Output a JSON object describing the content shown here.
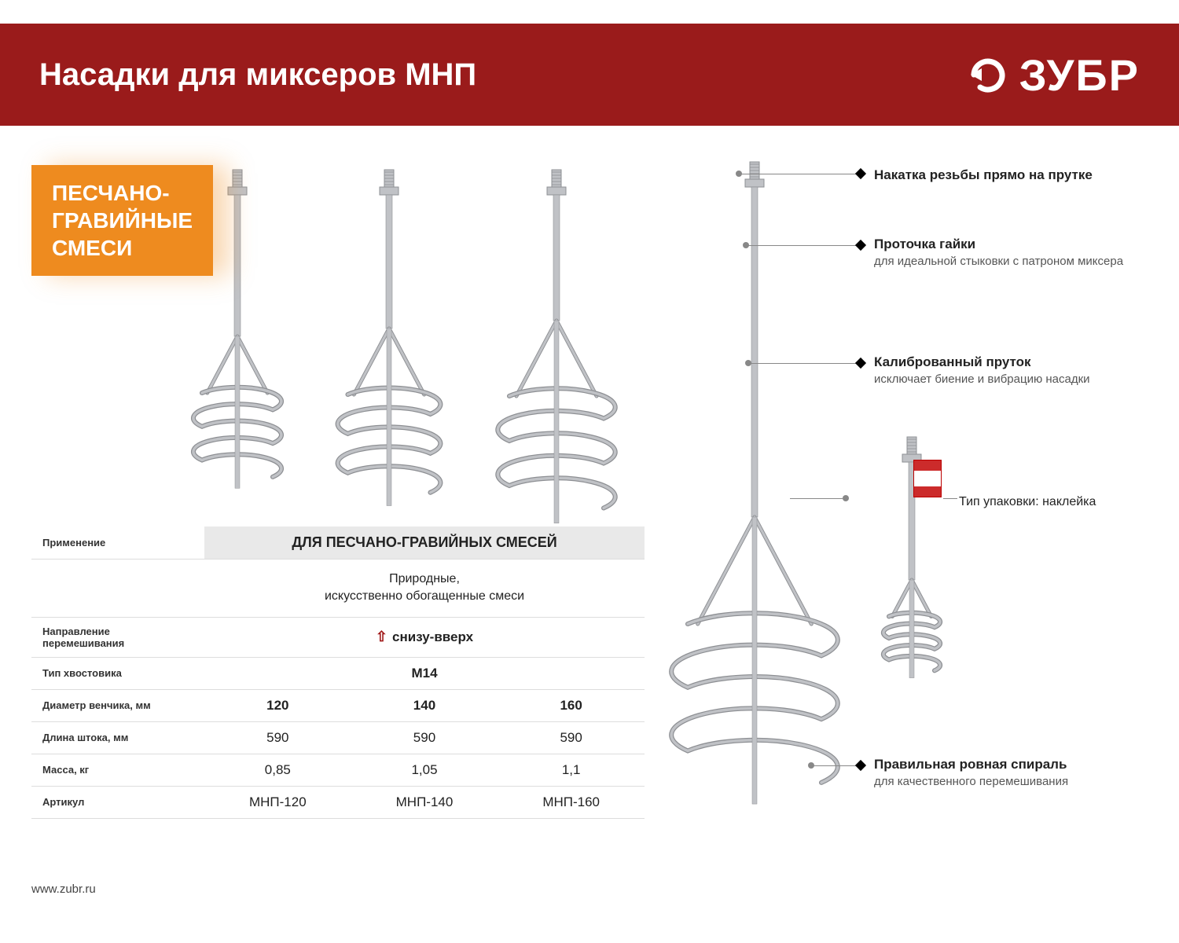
{
  "colors": {
    "header_bg": "#9a1b1b",
    "badge_bg": "#ee8b1f",
    "badge_shadow": "rgba(238,139,31,0.35)",
    "metal": "#c0c2c6",
    "metal_dark": "#8e9094",
    "label_red": "#cc2b2b"
  },
  "header": {
    "title": "Насадки для миксеров МНП",
    "brand": "ЗУБР"
  },
  "badge": {
    "line1": "ПЕСЧАНО-",
    "line2": "ГРАВИЙНЫЕ",
    "line3": "СМЕСИ"
  },
  "spec": {
    "application_label": "Применение",
    "application_header": "ДЛЯ ПЕСЧАНО-ГРАВИЙНЫХ СМЕСЕЙ",
    "application_sub1": "Природные,",
    "application_sub2": "искусственно обогащенные смеси",
    "direction_label": "Направление перемешивания",
    "direction_value": "снизу-вверх",
    "shank_label": "Тип хвостовика",
    "shank_value": "M14",
    "rows": [
      {
        "label": "Диаметр венчика, мм",
        "bold": true,
        "v": [
          "120",
          "140",
          "160"
        ]
      },
      {
        "label": "Длина штока, мм",
        "bold": false,
        "v": [
          "590",
          "590",
          "590"
        ]
      },
      {
        "label": "Масса, кг",
        "bold": false,
        "v": [
          "0,85",
          "1,05",
          "1,1"
        ]
      },
      {
        "label": "Артикул",
        "bold": false,
        "v": [
          "МНП-120",
          "МНП-140",
          "МНП-160"
        ]
      }
    ]
  },
  "callouts": {
    "c1": {
      "cap": "Накатка резьбы прямо на прутке",
      "desc": ""
    },
    "c2": {
      "cap": "Проточка гайки",
      "desc": "для идеальной стыковки с патроном миксера"
    },
    "c3": {
      "cap": "Калиброванный пруток",
      "desc": "исключает биение и вибрацию насадки"
    },
    "c4": {
      "cap": "Тип упаковки: наклейка",
      "desc": ""
    },
    "c5": {
      "cap": "Правильная ровная спираль",
      "desc": "для качественного перемешивания"
    }
  },
  "footer": {
    "url": "www.zubr.ru"
  }
}
